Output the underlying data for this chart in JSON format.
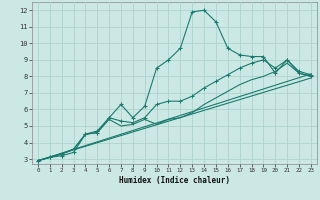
{
  "xlabel": "Humidex (Indice chaleur)",
  "bg_color": "#cce8e4",
  "grid_color": "#aacfca",
  "line_color": "#1a7a6e",
  "xlim": [
    -0.5,
    23.5
  ],
  "ylim": [
    2.7,
    12.5
  ],
  "xticks": [
    0,
    1,
    2,
    3,
    4,
    5,
    6,
    7,
    8,
    9,
    10,
    11,
    12,
    13,
    14,
    15,
    16,
    17,
    18,
    19,
    20,
    21,
    22,
    23
  ],
  "yticks": [
    3,
    4,
    5,
    6,
    7,
    8,
    9,
    10,
    11,
    12
  ],
  "straight_line1": {
    "x": [
      0,
      23
    ],
    "y": [
      2.9,
      7.9
    ]
  },
  "straight_line2": {
    "x": [
      0,
      23
    ],
    "y": [
      2.9,
      8.15
    ]
  },
  "curved_line1": {
    "x": [
      0,
      1,
      2,
      3,
      4,
      5,
      6,
      7,
      8,
      9,
      10,
      11,
      12,
      13,
      14,
      15,
      16,
      17,
      18,
      19,
      20,
      21,
      22,
      23
    ],
    "y": [
      2.9,
      3.1,
      3.3,
      3.6,
      4.5,
      4.7,
      5.5,
      5.3,
      5.2,
      5.5,
      6.3,
      6.5,
      6.5,
      6.8,
      7.3,
      7.7,
      8.1,
      8.5,
      8.8,
      9.0,
      8.5,
      9.0,
      8.3,
      8.1
    ]
  },
  "curved_line2": {
    "x": [
      0,
      1,
      2,
      3,
      4,
      5,
      6,
      7,
      8,
      9,
      10,
      11,
      12,
      13,
      14,
      15,
      16,
      17,
      18,
      19,
      20,
      21,
      22,
      23
    ],
    "y": [
      2.9,
      3.1,
      3.3,
      3.6,
      4.5,
      4.6,
      5.4,
      5.0,
      5.1,
      5.4,
      5.1,
      5.4,
      5.5,
      5.8,
      6.3,
      6.7,
      7.1,
      7.5,
      7.8,
      8.0,
      8.3,
      8.8,
      8.2,
      8.0
    ]
  },
  "main_line": {
    "x": [
      0,
      1,
      2,
      3,
      4,
      5,
      6,
      7,
      8,
      9,
      10,
      11,
      12,
      13,
      14,
      15,
      16,
      17,
      18,
      19,
      20,
      21,
      22,
      23
    ],
    "y": [
      2.9,
      3.1,
      3.2,
      3.4,
      4.5,
      4.6,
      5.5,
      6.3,
      5.5,
      6.2,
      8.5,
      9.0,
      9.7,
      11.9,
      12.0,
      11.3,
      9.7,
      9.3,
      9.2,
      9.2,
      8.2,
      9.0,
      8.2,
      8.0
    ]
  }
}
